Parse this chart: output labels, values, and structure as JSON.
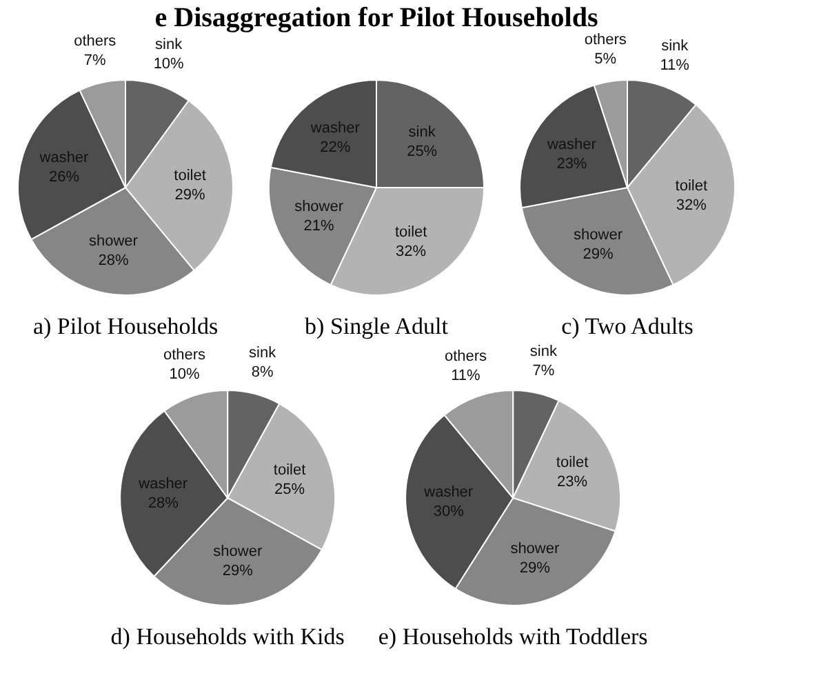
{
  "chart_data": [
    {
      "type": "pie",
      "title": "a) Pilot Households",
      "annotations": [
        "e Disaggregation for Pilot Households"
      ],
      "categories": [
        "sink",
        "toilet",
        "shower",
        "washer",
        "others"
      ],
      "values": [
        10,
        29,
        28,
        26,
        7
      ],
      "value_labels": [
        "10%",
        "29%",
        "28%",
        "26%",
        "7%"
      ],
      "colors": [
        "#636363",
        "#b3b3b3",
        "#868686",
        "#4d4d4d",
        "#9b9b9b"
      ],
      "legend": false
    },
    {
      "type": "pie",
      "title": "b) Single Adult",
      "categories": [
        "sink",
        "toilet",
        "shower",
        "washer"
      ],
      "values": [
        25,
        32,
        21,
        22
      ],
      "value_labels": [
        "25%",
        "32%",
        "21%",
        "22%"
      ],
      "colors": [
        "#636363",
        "#b3b3b3",
        "#868686",
        "#4d4d4d"
      ],
      "legend": false
    },
    {
      "type": "pie",
      "title": "c) Two Adults",
      "categories": [
        "sink",
        "toilet",
        "shower",
        "washer",
        "others"
      ],
      "values": [
        11,
        32,
        29,
        23,
        5
      ],
      "value_labels": [
        "11%",
        "32%",
        "29%",
        "23%",
        "5%"
      ],
      "colors": [
        "#636363",
        "#b3b3b3",
        "#868686",
        "#4d4d4d",
        "#9b9b9b"
      ],
      "legend": false
    },
    {
      "type": "pie",
      "title": "d) Households with Kids",
      "categories": [
        "sink",
        "toilet",
        "shower",
        "washer",
        "others"
      ],
      "values": [
        8,
        25,
        29,
        28,
        10
      ],
      "value_labels": [
        "8%",
        "25%",
        "29%",
        "28%",
        "10%"
      ],
      "colors": [
        "#636363",
        "#b3b3b3",
        "#868686",
        "#4d4d4d",
        "#9b9b9b"
      ],
      "legend": false
    },
    {
      "type": "pie",
      "title": "e) Households with Toddlers",
      "categories": [
        "sink",
        "toilet",
        "shower",
        "washer",
        "others"
      ],
      "values": [
        7,
        23,
        29,
        30,
        11
      ],
      "value_labels": [
        "7%",
        "23%",
        "29%",
        "30%",
        "11%"
      ],
      "colors": [
        "#636363",
        "#b3b3b3",
        "#868686",
        "#4d4d4d",
        "#9b9b9b"
      ],
      "legend": false
    }
  ]
}
